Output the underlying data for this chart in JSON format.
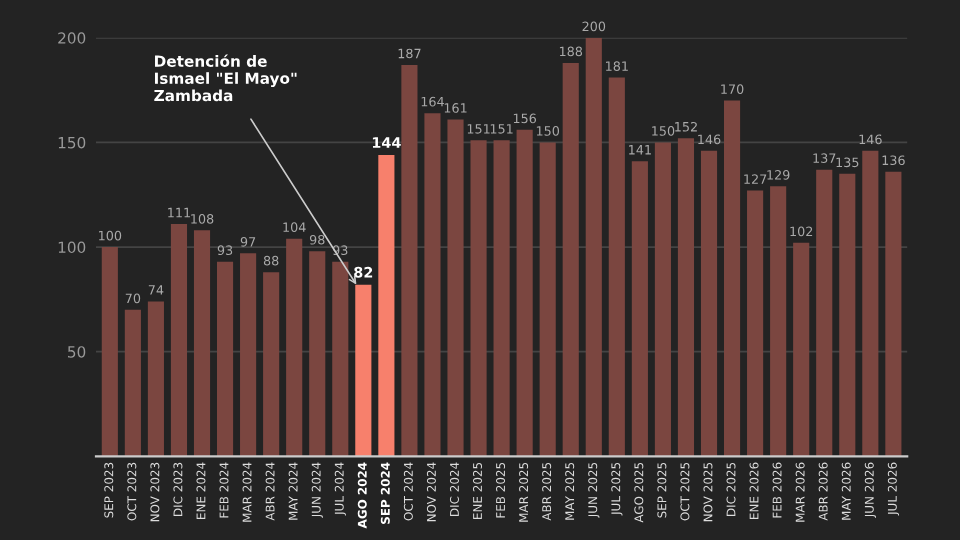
{
  "chart_data": {
    "type": "bar",
    "categories": [
      "SEP 2023",
      "OCT 2023",
      "NOV 2023",
      "DIC 2023",
      "ENE 2024",
      "FEB 2024",
      "MAR 2024",
      "ABR 2024",
      "MAY 2024",
      "JUN 2024",
      "JUL 2024",
      "AGO 2024",
      "SEP 2024",
      "OCT 2024",
      "NOV 2024",
      "DIC 2024",
      "ENE 2025",
      "FEB 2025",
      "MAR 2025",
      "ABR 2025",
      "MAY 2025",
      "JUN 2025",
      "JUL 2025",
      "AGO 2025",
      "SEP 2025",
      "OCT 2025",
      "NOV 2025",
      "DIC 2025",
      "ENE 2026",
      "FEB 2026",
      "MAR 2026",
      "ABR 2026",
      "MAY 2026",
      "JUN 2026",
      "JUL 2026"
    ],
    "values": [
      100,
      70,
      74,
      111,
      108,
      93,
      97,
      88,
      104,
      98,
      93,
      82,
      144,
      187,
      164,
      161,
      151,
      151,
      156,
      150,
      188,
      200,
      181,
      141,
      150,
      152,
      146,
      170,
      127,
      129,
      102,
      137,
      135,
      146,
      136
    ],
    "colors": [
      "#7b4640",
      "#7b4640",
      "#7b4640",
      "#7b4640",
      "#7b4640",
      "#7b4640",
      "#7b4640",
      "#7b4640",
      "#7b4640",
      "#7b4640",
      "#7b4640",
      "#f7806c",
      "#f7806c",
      "#7b4640",
      "#7b4640",
      "#7b4640",
      "#7b4640",
      "#7b4640",
      "#7b4640",
      "#7b4640",
      "#7b4640",
      "#7b4640",
      "#7b4640",
      "#7b4640",
      "#7b4640",
      "#7b4640",
      "#7b4640",
      "#7b4640",
      "#7b4640",
      "#7b4640",
      "#7b4640",
      "#7b4640",
      "#7b4640",
      "#7b4640",
      "#7b4640"
    ],
    "ylim": [
      0,
      200
    ],
    "yticks": [
      50,
      100,
      150,
      200
    ],
    "grid": "y",
    "data_labels": true,
    "annotations": [
      {
        "text": "Detención de\nIsmael \"El Mayo\"\nZambada",
        "x": "AGO 2024",
        "y": 82
      }
    ]
  }
}
